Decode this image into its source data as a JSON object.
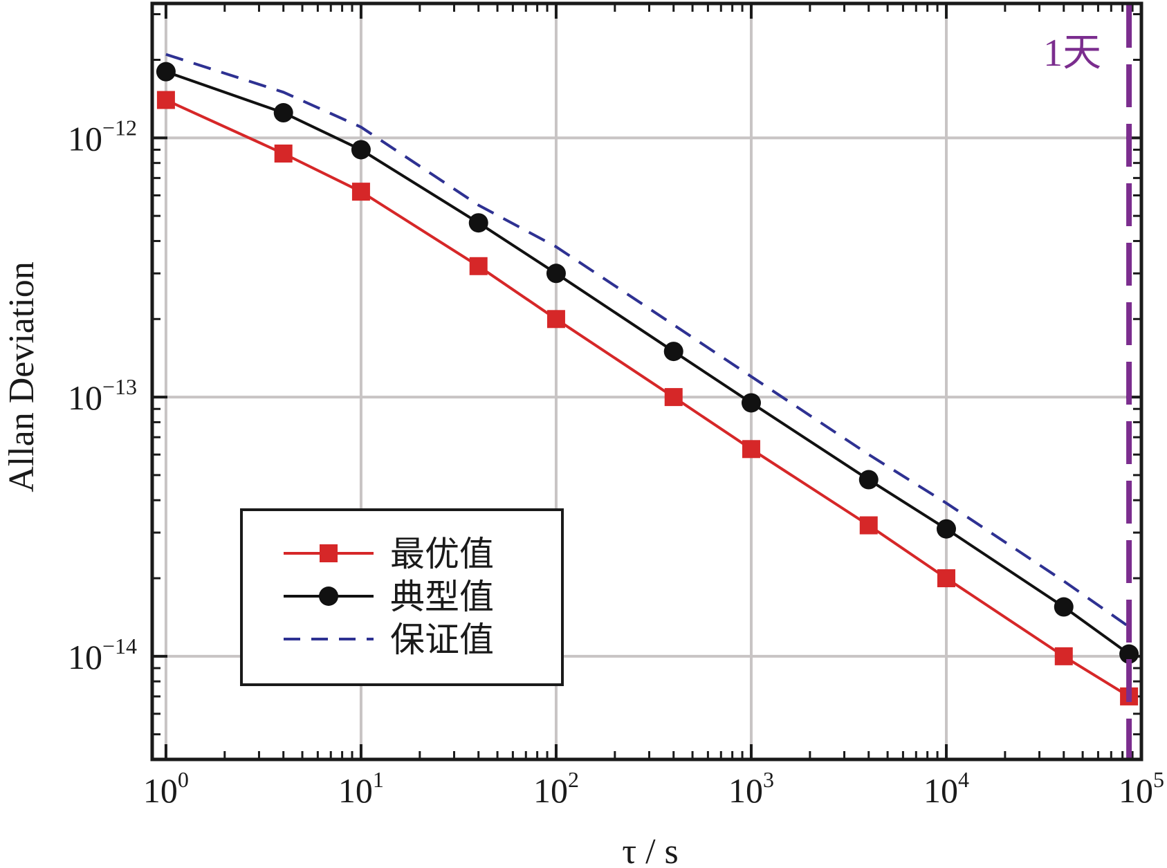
{
  "chart_data": {
    "type": "line",
    "xlabel": "τ / s",
    "ylabel": "Allan Deviation",
    "x_scale": "log",
    "y_scale": "log",
    "xlim": [
      0.85,
      100000
    ],
    "ylim": [
      4e-15,
      3.3e-12
    ],
    "grid": true,
    "legend_position": "lower-left",
    "x_ticks": [
      {
        "base": "10",
        "exp": "0",
        "value": 1
      },
      {
        "base": "10",
        "exp": "1",
        "value": 10
      },
      {
        "base": "10",
        "exp": "2",
        "value": 100
      },
      {
        "base": "10",
        "exp": "3",
        "value": 1000
      },
      {
        "base": "10",
        "exp": "4",
        "value": 10000
      },
      {
        "base": "10",
        "exp": "5",
        "value": 100000
      }
    ],
    "y_ticks": [
      {
        "base": "10",
        "exp": "−12",
        "value": 1e-12
      },
      {
        "base": "10",
        "exp": "−13",
        "value": 1e-13
      },
      {
        "base": "10",
        "exp": "−14",
        "value": 1e-14
      }
    ],
    "series": [
      {
        "name": "最优值",
        "color": "#d62728",
        "marker": "square",
        "line": "solid",
        "x": [
          1,
          4,
          10,
          40,
          100,
          400,
          1000,
          4000,
          10000,
          40000,
          86400
        ],
        "y": [
          1.4e-12,
          8.7e-13,
          6.2e-13,
          3.2e-13,
          2e-13,
          1e-13,
          6.3e-14,
          3.2e-14,
          2e-14,
          1e-14,
          7e-15
        ]
      },
      {
        "name": "典型值",
        "color": "#111111",
        "marker": "circle",
        "line": "solid",
        "x": [
          1,
          4,
          10,
          40,
          100,
          400,
          1000,
          4000,
          10000,
          40000,
          86400
        ],
        "y": [
          1.8e-12,
          1.25e-12,
          9e-13,
          4.7e-13,
          3e-13,
          1.5e-13,
          9.5e-14,
          4.8e-14,
          3.1e-14,
          1.55e-14,
          1.02e-14
        ]
      },
      {
        "name": "保证值",
        "color": "#2e3192",
        "marker": "none",
        "line": "dashed",
        "x": [
          1,
          4,
          10,
          40,
          100,
          400,
          1000,
          4000,
          10000,
          40000,
          86400
        ],
        "y": [
          2.1e-12,
          1.5e-12,
          1.1e-12,
          5.5e-13,
          3.8e-13,
          1.9e-13,
          1.2e-13,
          6e-14,
          3.9e-14,
          1.95e-14,
          1.3e-14
        ]
      }
    ],
    "vline": {
      "x": 86400,
      "label": "1天",
      "color": "#7b2d8e",
      "line": "dashed"
    }
  }
}
